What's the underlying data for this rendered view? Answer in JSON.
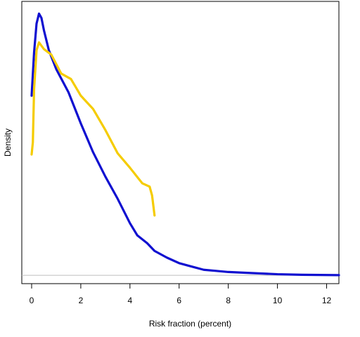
{
  "chart_data": {
    "type": "line",
    "title": "",
    "xlabel": "Risk fraction (percent)",
    "ylabel": "Density",
    "xlim": [
      -0.4,
      12.5
    ],
    "ylim": [
      -0.0075,
      0.247
    ],
    "x_ticks": [
      0,
      2,
      4,
      6,
      8,
      10,
      12
    ],
    "x_tick_labels": [
      "0",
      "2",
      "4",
      "6",
      "8",
      "10",
      "12"
    ],
    "y_axis_ticks_shown": false,
    "grid": false,
    "baseline": 0,
    "colors": {
      "series_blue": "#1010d0",
      "series_gold": "#f5cc00",
      "baseline": "#bebebe",
      "frame": "#000000"
    },
    "series": [
      {
        "color": "#1010d0",
        "x": [
          0.0,
          0.1,
          0.2,
          0.3,
          0.4,
          0.5,
          0.7,
          1.0,
          1.5,
          2.0,
          2.5,
          3.0,
          3.5,
          4.0,
          4.3,
          4.7,
          5.0,
          5.5,
          6.0,
          6.5,
          7.0,
          7.5,
          8.0,
          9.0,
          10.0,
          11.0,
          12.5
        ],
        "y": [
          0.162,
          0.201,
          0.227,
          0.236,
          0.232,
          0.221,
          0.203,
          0.186,
          0.165,
          0.137,
          0.111,
          0.089,
          0.069,
          0.047,
          0.036,
          0.029,
          0.022,
          0.016,
          0.011,
          0.008,
          0.005,
          0.004,
          0.003,
          0.002,
          0.001,
          0.0005,
          0.0002
        ]
      },
      {
        "color": "#f5cc00",
        "x": [
          0.0,
          0.05,
          0.1,
          0.2,
          0.3,
          0.5,
          0.8,
          1.2,
          1.6,
          2.0,
          2.5,
          3.0,
          3.5,
          4.0,
          4.5,
          4.8,
          4.9,
          5.0
        ],
        "y": [
          0.109,
          0.12,
          0.168,
          0.203,
          0.21,
          0.204,
          0.199,
          0.182,
          0.177,
          0.162,
          0.15,
          0.131,
          0.11,
          0.097,
          0.083,
          0.08,
          0.072,
          0.054
        ]
      }
    ]
  }
}
